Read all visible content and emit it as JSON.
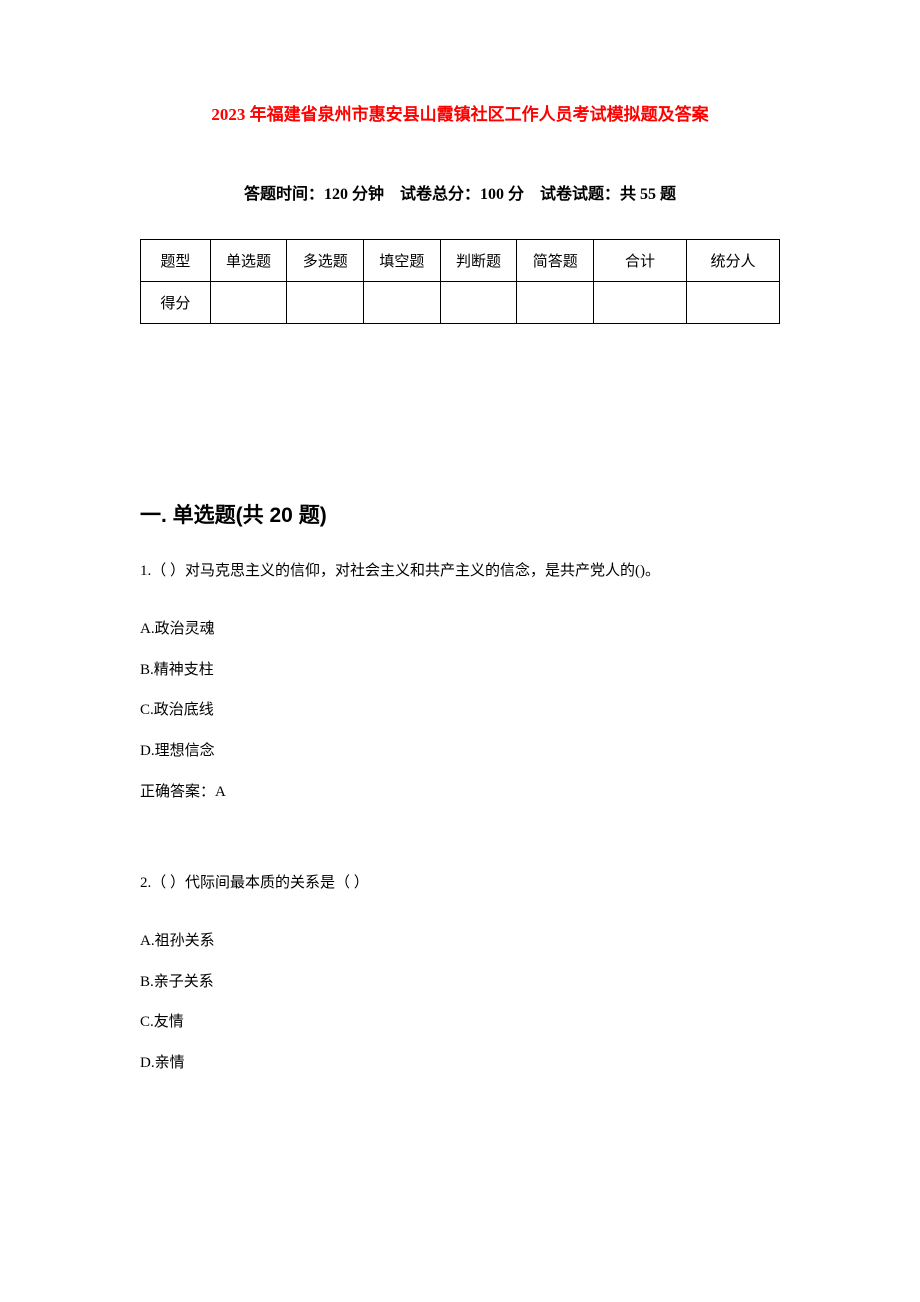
{
  "title": "2023 年福建省泉州市惠安县山霞镇社区工作人员考试模拟题及答案",
  "exam_info": {
    "time_label": "答题时间：",
    "time_value": "120 分钟",
    "total_label": "试卷总分：",
    "total_value": "100 分",
    "count_label": "试卷试题：",
    "count_value": "共 55 题"
  },
  "score_table": {
    "row_labels": [
      "题型",
      "得分"
    ],
    "columns": [
      "单选题",
      "多选题",
      "填空题",
      "判断题",
      "简答题",
      "合计",
      "统分人"
    ]
  },
  "section_heading": "一. 单选题(共 20 题)",
  "questions": [
    {
      "number": "1.",
      "text": "（ ）对马克思主义的信仰，对社会主义和共产主义的信念，是共产党人的()。",
      "options": [
        {
          "label": "A.",
          "text": "政治灵魂"
        },
        {
          "label": "B.",
          "text": "精神支柱"
        },
        {
          "label": "C.",
          "text": "政治底线"
        },
        {
          "label": "D.",
          "text": "理想信念"
        }
      ],
      "answer_label": "正确答案：",
      "answer": "A"
    },
    {
      "number": "2.",
      "text": "（ ）代际间最本质的关系是（ ）",
      "options": [
        {
          "label": "A.",
          "text": "祖孙关系"
        },
        {
          "label": "B.",
          "text": "亲子关系"
        },
        {
          "label": "C.",
          "text": "友情"
        },
        {
          "label": "D.",
          "text": "亲情"
        }
      ],
      "answer_label": "",
      "answer": ""
    }
  ],
  "colors": {
    "title_color": "#ff0000",
    "text_color": "#000000",
    "background_color": "#ffffff",
    "border_color": "#000000"
  },
  "typography": {
    "title_fontsize": 17,
    "info_fontsize": 16,
    "heading_fontsize": 21,
    "body_fontsize": 15,
    "table_fontsize": 15
  }
}
